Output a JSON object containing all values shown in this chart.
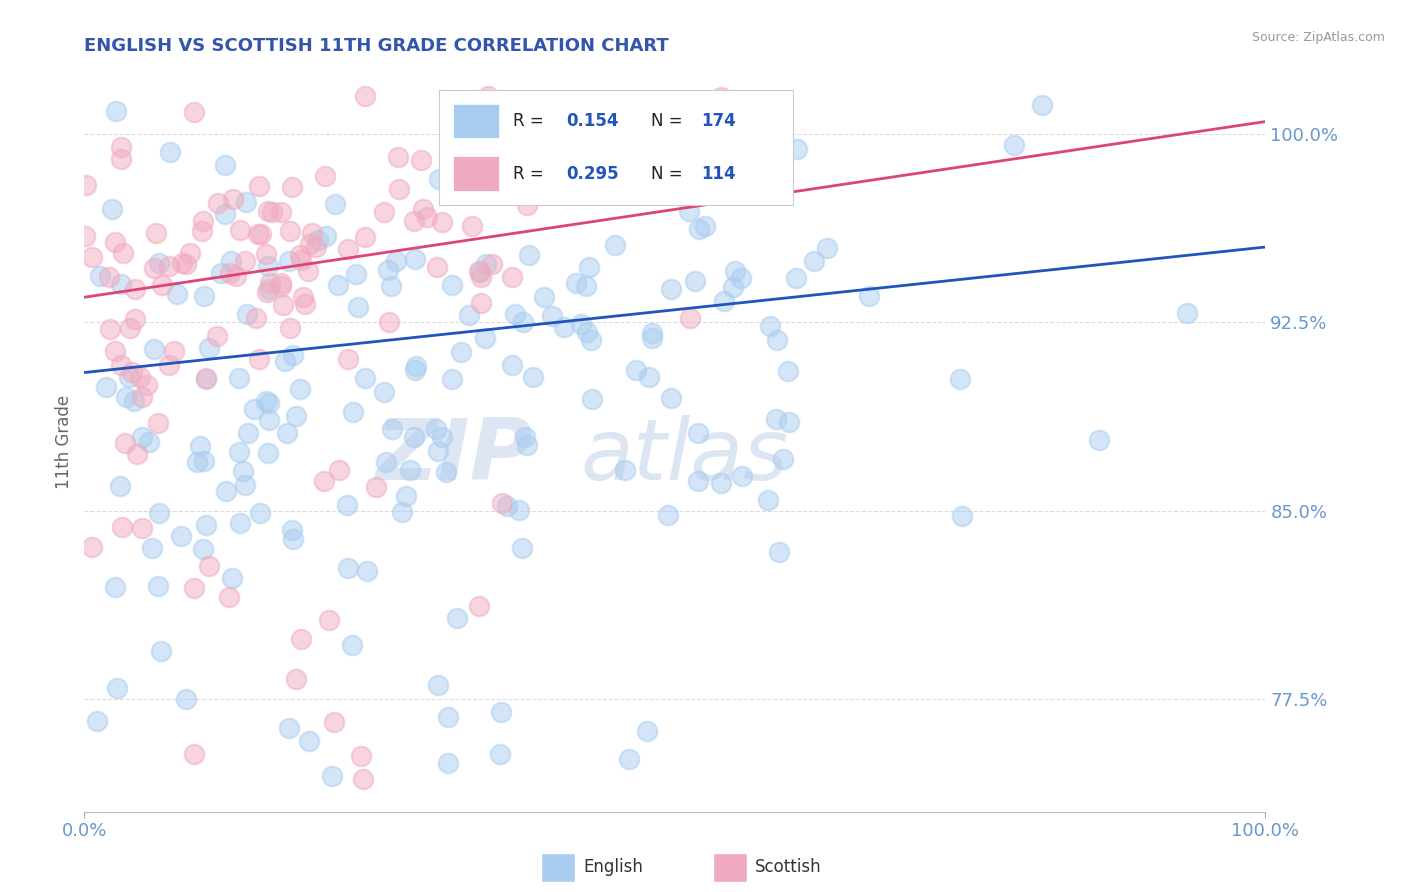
{
  "title": "ENGLISH VS SCOTTISH 11TH GRADE CORRELATION CHART",
  "source": "Source: ZipAtlas.com",
  "ylabel": "11th Grade",
  "xlim": [
    0.0,
    1.0
  ],
  "ylim": [
    0.73,
    1.025
  ],
  "yticks": [
    0.775,
    0.85,
    0.925,
    1.0
  ],
  "ytick_labels": [
    "77.5%",
    "85.0%",
    "92.5%",
    "100.0%"
  ],
  "xtick_labels": [
    "0.0%",
    "100.0%"
  ],
  "english_R": 0.154,
  "english_N": 174,
  "scottish_R": 0.295,
  "scottish_N": 114,
  "english_color": "#A8CCF0",
  "scottish_color": "#F0AABF",
  "english_line_color": "#2255BB",
  "scottish_line_color": "#DD4477",
  "title_color": "#3355AA",
  "axis_label_color": "#666666",
  "tick_color": "#6699CC",
  "grid_color": "#CCCCCC",
  "background_color": "#FFFFFF",
  "english_line_start": 0.905,
  "english_line_end": 0.955,
  "scottish_line_start": 0.935,
  "scottish_line_end": 1.005
}
